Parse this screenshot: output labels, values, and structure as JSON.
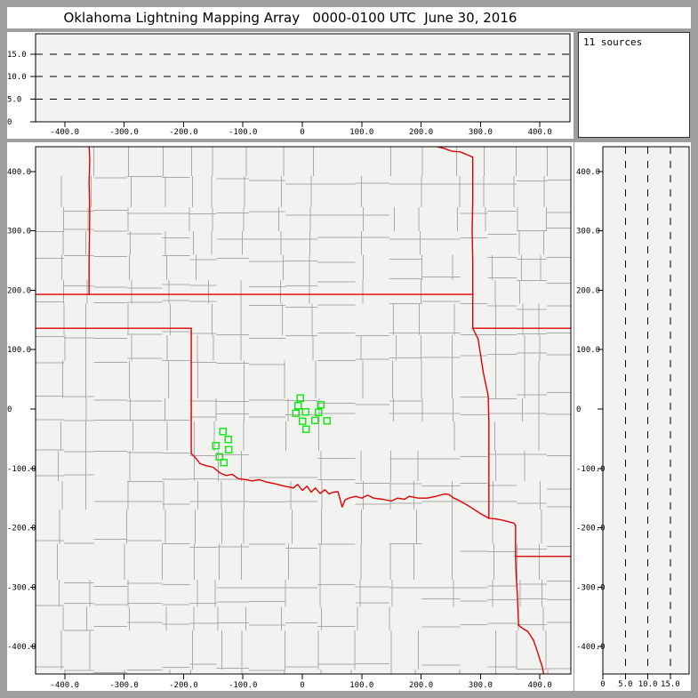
{
  "title": "Oklahoma Lightning Mapping Array   0000-0100 UTC  June 30, 2016",
  "sources_box": {
    "label": "11 sources",
    "sources_count": 11
  },
  "colors": {
    "frame_gray": "#9e9e9e",
    "panel_white": "#ffffff",
    "plot_bg": "#f2f2f0",
    "county_line": "#a9a9a9",
    "state_border_red": "#e00000",
    "station_green": "#1ae61a",
    "axis_black": "#000000"
  },
  "chart_data": [
    {
      "type": "scatter",
      "name": "altitude-vs-east-west",
      "title": "",
      "xlabel": "",
      "ylabel": "",
      "xlim": [
        -450,
        451
      ],
      "ylim": [
        0,
        19.6
      ],
      "x_ticks": [
        {
          "v": -400,
          "label": "-400.0"
        },
        {
          "v": -300,
          "label": "-300.0"
        },
        {
          "v": -200,
          "label": "-200.0"
        },
        {
          "v": -100,
          "label": "-100.0"
        },
        {
          "v": 0,
          "label": "0"
        },
        {
          "v": 100,
          "label": "100.0"
        },
        {
          "v": 200,
          "label": "200.0"
        },
        {
          "v": 300,
          "label": "300.0"
        },
        {
          "v": 400,
          "label": "400.0"
        }
      ],
      "y_ticks": [
        {
          "v": 0,
          "label": "0"
        },
        {
          "v": 5,
          "label": "5.0"
        },
        {
          "v": 10,
          "label": "10.0"
        },
        {
          "v": 15,
          "label": "15.0"
        }
      ],
      "gridlines_y": [
        5,
        10,
        15
      ],
      "points": []
    },
    {
      "type": "scatter",
      "name": "plan-view-map",
      "title": "",
      "xlabel": "",
      "ylabel": "",
      "xlim": [
        -449,
        452
      ],
      "ylim": [
        -446,
        442
      ],
      "x_ticks": [
        {
          "v": -400,
          "label": "-400.0"
        },
        {
          "v": -300,
          "label": "-300.0"
        },
        {
          "v": -200,
          "label": "-200.0"
        },
        {
          "v": -100,
          "label": "-100.0"
        },
        {
          "v": 0,
          "label": "0"
        },
        {
          "v": 100,
          "label": "100.0"
        },
        {
          "v": 200,
          "label": "200.0"
        },
        {
          "v": 300,
          "label": "300.0"
        },
        {
          "v": 400,
          "label": "400.0"
        }
      ],
      "y_ticks": [
        {
          "v": 400,
          "label": "400.0"
        },
        {
          "v": 300,
          "label": "300.0"
        },
        {
          "v": 200,
          "label": "200.0"
        },
        {
          "v": 100,
          "label": "100.0"
        },
        {
          "v": 0,
          "label": "0"
        },
        {
          "v": -100,
          "label": "-100.0"
        },
        {
          "v": -200,
          "label": "-200.0"
        },
        {
          "v": -300,
          "label": "-300.0"
        },
        {
          "v": -400,
          "label": "-400.0"
        }
      ],
      "stations": [
        [
          -3.7,
          18.7
        ],
        [
          -7.5,
          6.0
        ],
        [
          30.7,
          7.5
        ],
        [
          -11.2,
          -6.7
        ],
        [
          5.2,
          -4.5
        ],
        [
          26.9,
          -5.2
        ],
        [
          0.0,
          -20.2
        ],
        [
          21.0,
          -18.7
        ],
        [
          41.2,
          -19.5
        ],
        [
          6.0,
          -33.7
        ],
        [
          -134.0,
          -37.4
        ],
        [
          -125.0,
          -50.9
        ],
        [
          -146.0,
          -61.4
        ],
        [
          -124.3,
          -68.1
        ],
        [
          -140.0,
          -80.1
        ],
        [
          -132.5,
          -89.8
        ]
      ],
      "state_borders": [
        [
          [
            -449,
            193
          ],
          [
            287,
            193
          ]
        ],
        [
          [
            -359,
            442
          ],
          [
            -358,
            420
          ],
          [
            -359,
            380
          ],
          [
            -358,
            330
          ],
          [
            -359,
            250
          ],
          [
            -359,
            193
          ]
        ],
        [
          [
            225,
            442
          ],
          [
            238,
            439
          ],
          [
            252,
            434
          ],
          [
            266,
            433
          ],
          [
            278,
            428
          ],
          [
            287,
            424
          ],
          [
            287,
            350
          ],
          [
            286,
            300
          ],
          [
            287,
            250
          ],
          [
            287,
            193
          ]
        ],
        [
          [
            287,
            193
          ],
          [
            287,
            136
          ]
        ],
        [
          [
            287,
            136
          ],
          [
            452,
            136
          ]
        ],
        [
          [
            287,
            136
          ],
          [
            296,
            118
          ],
          [
            305,
            60
          ],
          [
            313,
            22
          ],
          [
            314,
            -20
          ],
          [
            314,
            -90
          ],
          [
            314,
            -184
          ]
        ],
        [
          [
            -449,
            136
          ],
          [
            -187,
            136
          ]
        ],
        [
          [
            -187,
            136
          ],
          [
            -187,
            -75
          ]
        ],
        [
          [
            -187,
            -75
          ],
          [
            -180,
            -82
          ],
          [
            -172,
            -92
          ],
          [
            -160,
            -96
          ],
          [
            -150,
            -98
          ],
          [
            -143,
            -104
          ],
          [
            -138,
            -108
          ],
          [
            -128,
            -112
          ],
          [
            -118,
            -110
          ],
          [
            -108,
            -117
          ],
          [
            -95,
            -119
          ],
          [
            -85,
            -121
          ],
          [
            -72,
            -119
          ],
          [
            -60,
            -123
          ],
          [
            -45,
            -126
          ],
          [
            -30,
            -130
          ],
          [
            -15,
            -133
          ],
          [
            -8,
            -127
          ],
          [
            0,
            -137
          ],
          [
            8,
            -130
          ],
          [
            15,
            -140
          ],
          [
            22,
            -133
          ],
          [
            30,
            -142
          ],
          [
            38,
            -136
          ],
          [
            45,
            -143
          ],
          [
            52,
            -140
          ],
          [
            60,
            -139
          ],
          [
            67,
            -165
          ],
          [
            72,
            -153
          ],
          [
            78,
            -150
          ],
          [
            90,
            -147
          ],
          [
            100,
            -150
          ],
          [
            110,
            -145
          ],
          [
            120,
            -150
          ],
          [
            135,
            -152
          ],
          [
            150,
            -155
          ],
          [
            160,
            -150
          ],
          [
            172,
            -152
          ],
          [
            180,
            -147
          ],
          [
            195,
            -150
          ],
          [
            210,
            -150
          ],
          [
            225,
            -147
          ],
          [
            240,
            -143
          ],
          [
            247,
            -144
          ],
          [
            255,
            -150
          ],
          [
            262,
            -153
          ],
          [
            269,
            -157
          ],
          [
            280,
            -163
          ],
          [
            289,
            -169
          ],
          [
            300,
            -176
          ],
          [
            314,
            -184
          ]
        ],
        [
          [
            314,
            -184
          ],
          [
            325,
            -185
          ],
          [
            337,
            -187
          ],
          [
            348,
            -190
          ],
          [
            356,
            -192
          ],
          [
            359,
            -196
          ]
        ],
        [
          [
            359,
            -196
          ],
          [
            359,
            -248
          ]
        ],
        [
          [
            359,
            -248
          ],
          [
            452,
            -248
          ]
        ],
        [
          [
            359,
            -248
          ],
          [
            360,
            -280
          ],
          [
            362,
            -310
          ],
          [
            364,
            -364
          ]
        ],
        [
          [
            364,
            -364
          ],
          [
            372,
            -370
          ],
          [
            379,
            -374
          ],
          [
            384,
            -381
          ],
          [
            389,
            -389
          ],
          [
            393,
            -400
          ],
          [
            397,
            -412
          ],
          [
            400,
            -422
          ],
          [
            404,
            -434
          ],
          [
            407,
            -450
          ]
        ]
      ],
      "points": []
    },
    {
      "type": "scatter",
      "name": "altitude-vs-north-south",
      "title": "",
      "xlabel": "",
      "ylabel": "",
      "xlim": [
        0,
        19.2
      ],
      "ylim": [
        -446,
        442
      ],
      "x_ticks": [
        {
          "v": 0,
          "label": "0"
        },
        {
          "v": 5,
          "label": "5.0"
        },
        {
          "v": 10,
          "label": "10.0"
        },
        {
          "v": 15,
          "label": "15.0"
        }
      ],
      "y_ticks": [
        {
          "v": 400,
          "label": "400.0"
        },
        {
          "v": 300,
          "label": "300.0"
        },
        {
          "v": 200,
          "label": "200.0"
        },
        {
          "v": 100,
          "label": "100.0"
        },
        {
          "v": 0,
          "label": "0"
        },
        {
          "v": -100,
          "label": "-100.0"
        },
        {
          "v": -200,
          "label": "-200.0"
        },
        {
          "v": -300,
          "label": "-300.0"
        },
        {
          "v": -400,
          "label": "-400.0"
        }
      ],
      "gridlines_x": [
        5,
        10,
        15
      ],
      "points": []
    }
  ]
}
